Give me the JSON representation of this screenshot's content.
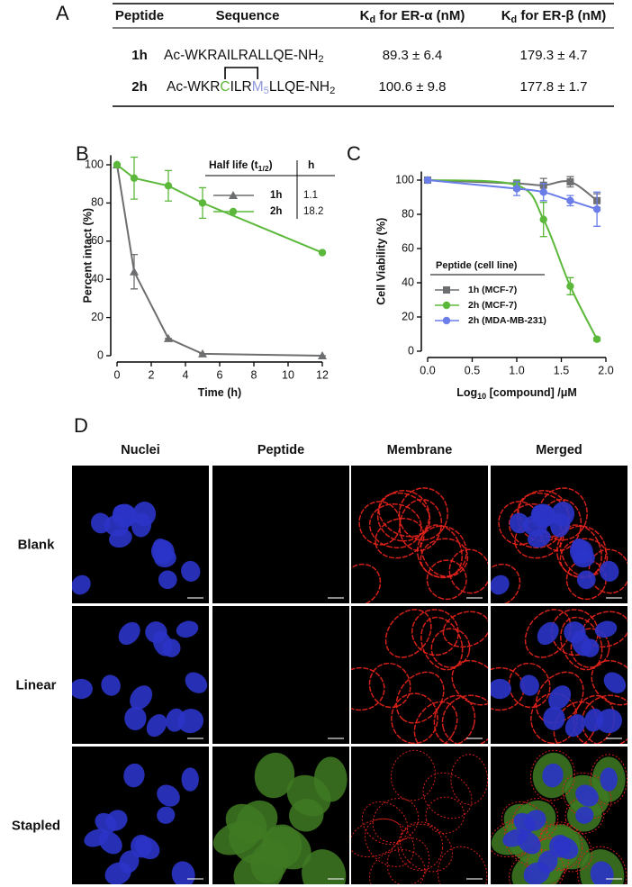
{
  "panel_labels": [
    "A",
    "B",
    "C",
    "D"
  ],
  "table": {
    "columns": [
      {
        "text": "Peptide"
      },
      {
        "text": "Sequence"
      },
      {
        "text": "K",
        "sub": "d",
        "rest": " for ER-α (nM)"
      },
      {
        "text": "K",
        "sub": "d",
        "rest": " for ER-β (nM)"
      }
    ],
    "rows": [
      {
        "peptide": "1h",
        "sequence": [
          {
            "text": "Ac-WKRAILRALLQE-NH"
          },
          {
            "sub": "2"
          }
        ],
        "kd_alpha": "89.3 ± 6.4",
        "kd_beta": "179.3 ±  4.7"
      },
      {
        "peptide": "2h",
        "sequence": [
          {
            "text": "Ac-WKR"
          },
          {
            "text": "C",
            "color": "#5cb83a"
          },
          {
            "text": "ILR"
          },
          {
            "text": "M",
            "color": "#8f98dc"
          },
          {
            "sub": "5",
            "color": "#8f98dc"
          },
          {
            "text": "LLQE-NH"
          },
          {
            "sub": "2"
          }
        ],
        "kd_alpha": "100.6 ± 9.8",
        "kd_beta": "177.8 ± 1.7"
      }
    ]
  },
  "chart_data": [
    {
      "type": "line",
      "curve": "straight",
      "x_label": {
        "text": "Time (h)"
      },
      "y_label": "Percent intact (%)",
      "xlim": [
        0,
        12
      ],
      "xticks": [
        0,
        2,
        4,
        6,
        8,
        10,
        12
      ],
      "ylim": [
        0,
        105
      ],
      "yticks": [
        0,
        20,
        40,
        60,
        80,
        100
      ],
      "legend": {
        "title": {
          "text": "Half life (t",
          "sub": "1/2",
          "rest": ")"
        },
        "value_header": "h"
      },
      "series": [
        {
          "name": "1h",
          "color": "#6d6e70",
          "marker": "triangle",
          "x": [
            0,
            1,
            3,
            5,
            12
          ],
          "values": [
            100,
            44,
            9,
            1,
            0
          ],
          "errors": [
            0,
            9,
            0,
            0,
            0
          ],
          "half_life": 1.1
        },
        {
          "name": "2h",
          "color": "#5cb83a",
          "marker": "circle",
          "x": [
            0,
            1,
            3,
            5,
            12
          ],
          "values": [
            100,
            93,
            89,
            80,
            54
          ],
          "errors": [
            0,
            11,
            8,
            8,
            0
          ],
          "half_life": 18.2
        }
      ]
    },
    {
      "type": "line",
      "curve": "smooth",
      "x_label": {
        "text": "Log",
        "sub": "10",
        "rest": " [compound] /μM"
      },
      "y_label": "Cell Viability (%)",
      "xlim": [
        0,
        2
      ],
      "xticks": [
        {
          "value": 0,
          "label": "0.0"
        },
        {
          "value": 0.5,
          "label": "0.5"
        },
        {
          "value": 1,
          "label": "1.0"
        },
        {
          "value": 1.5,
          "label": "1.5"
        },
        {
          "value": 2,
          "label": "2.0"
        }
      ],
      "ylim": [
        0,
        105
      ],
      "yticks": [
        0,
        20,
        40,
        60,
        80,
        100
      ],
      "legend": {
        "title": {
          "text": "Peptide (cell line)"
        }
      },
      "series": [
        {
          "name": "1h (MCF-7)",
          "color": "#6d6e70",
          "marker": "square",
          "x": [
            0,
            1,
            1.3,
            1.6,
            1.9
          ],
          "values": [
            100,
            98,
            97,
            99,
            88
          ],
          "errors": [
            1,
            2,
            4,
            3,
            4
          ]
        },
        {
          "name": "2h (MCF-7)",
          "color": "#5cb83a",
          "marker": "circle",
          "x": [
            0,
            1,
            1.3,
            1.6,
            1.9
          ],
          "values": [
            100,
            97,
            77,
            38,
            7
          ],
          "errors": [
            1,
            3,
            10,
            5,
            1
          ]
        },
        {
          "name": "2h (MDA-MB-231)",
          "color": "#6a7de8",
          "marker": "circle",
          "x": [
            0,
            1,
            1.3,
            1.6,
            1.9
          ],
          "values": [
            100,
            95,
            93,
            88,
            83
          ],
          "errors": [
            1,
            4,
            5,
            3,
            10
          ]
        }
      ]
    }
  ],
  "microscopy": {
    "columns": [
      "Nuclei",
      "Peptide",
      "Membrane",
      "Merged"
    ],
    "rows": [
      "Blank",
      "Linear",
      "Stapled"
    ]
  }
}
